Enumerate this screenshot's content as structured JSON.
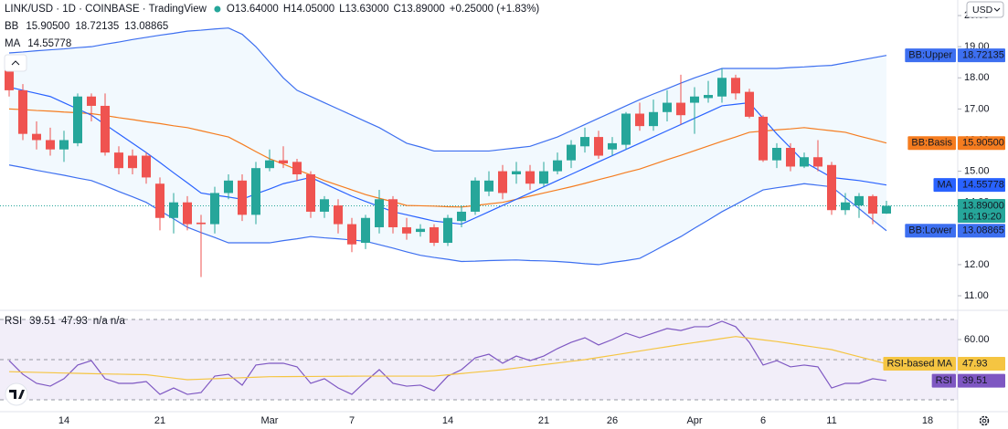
{
  "header": {
    "title": "LINK/USD · 1D · COINBASE · TradingView",
    "ohlc": [
      "O13.64000",
      "H14.05000",
      "L13.63000",
      "C13.89000",
      "+0.25000 (+1.83%)"
    ],
    "currency": "USD"
  },
  "chart_data": [
    {
      "type": "candlestick",
      "categories": [
        null,
        null,
        null,
        null,
        "14",
        null,
        null,
        null,
        null,
        null,
        null,
        "21",
        null,
        null,
        null,
        null,
        null,
        null,
        null,
        "Mar",
        null,
        null,
        null,
        null,
        null,
        "7",
        null,
        null,
        null,
        null,
        null,
        null,
        "14",
        null,
        null,
        null,
        null,
        null,
        null,
        "21",
        null,
        null,
        null,
        null,
        "26",
        null,
        null,
        null,
        null,
        null,
        "Apr",
        null,
        null,
        null,
        null,
        "6",
        null,
        null,
        null,
        null,
        "11",
        null,
        null,
        null,
        null,
        null,
        null,
        "18",
        null,
        null
      ],
      "open": [
        18.6,
        17.6,
        16.2,
        16.0,
        15.7,
        15.9,
        17.4,
        17.1,
        15.6,
        15.5,
        15.5,
        14.6,
        13.5,
        14.0,
        13.35,
        13.3,
        14.3,
        14.7,
        13.6,
        15.1,
        15.35,
        15.3,
        14.9,
        13.7,
        13.9,
        13.3,
        12.7,
        13.2,
        14.1,
        13.2,
        13.05,
        13.2,
        12.7,
        13.4,
        13.7,
        14.35,
        15.0,
        14.9,
        15.0,
        14.6,
        15.0,
        15.35,
        15.8,
        16.1,
        15.7,
        15.85,
        16.85,
        16.45,
        16.9,
        17.2,
        17.2,
        17.35,
        17.4,
        18.0,
        17.55,
        16.75,
        15.35,
        15.75,
        15.15,
        15.45,
        15.2,
        13.75,
        13.9,
        14.2,
        13.64,
        null,
        null,
        null,
        null,
        null
      ],
      "high": [
        18.7,
        17.8,
        16.6,
        16.4,
        16.3,
        17.5,
        17.5,
        17.5,
        15.8,
        15.7,
        15.6,
        14.8,
        14.3,
        14.2,
        13.6,
        14.5,
        14.9,
        14.9,
        15.3,
        15.7,
        15.8,
        15.4,
        15.0,
        14.2,
        14.1,
        13.5,
        13.6,
        14.4,
        14.2,
        13.5,
        13.3,
        13.3,
        13.6,
        13.9,
        14.8,
        15.0,
        15.2,
        15.3,
        15.2,
        15.3,
        15.6,
        16.0,
        16.4,
        16.3,
        16.1,
        16.9,
        17.2,
        17.3,
        17.6,
        18.1,
        17.7,
        17.9,
        18.3,
        18.1,
        17.65,
        16.8,
        15.9,
        15.9,
        15.6,
        16.0,
        15.3,
        14.3,
        14.3,
        14.25,
        14.05,
        null,
        null,
        null,
        null,
        null
      ],
      "low": [
        17.4,
        16.0,
        15.7,
        15.5,
        15.3,
        15.8,
        16.6,
        15.5,
        14.9,
        14.9,
        14.6,
        13.1,
        13.0,
        13.1,
        11.6,
        13.0,
        14.1,
        13.4,
        13.3,
        15.0,
        15.1,
        14.7,
        13.5,
        13.5,
        13.0,
        12.4,
        12.5,
        13.0,
        13.0,
        12.8,
        12.9,
        12.6,
        12.6,
        13.2,
        13.6,
        14.2,
        14.1,
        14.6,
        14.4,
        14.5,
        14.9,
        15.1,
        15.6,
        15.4,
        15.5,
        15.7,
        16.3,
        16.3,
        16.6,
        16.5,
        16.2,
        17.2,
        17.2,
        17.3,
        16.7,
        15.3,
        15.1,
        15.0,
        15.1,
        15.0,
        13.6,
        13.6,
        13.5,
        13.3,
        13.63,
        null,
        null,
        null,
        null,
        null
      ],
      "close": [
        17.6,
        16.2,
        16.0,
        15.7,
        16.0,
        17.4,
        17.1,
        15.6,
        15.1,
        15.1,
        14.8,
        13.5,
        14.0,
        13.3,
        13.3,
        14.3,
        14.7,
        13.6,
        15.1,
        15.35,
        15.25,
        14.9,
        13.7,
        14.1,
        13.3,
        12.65,
        13.5,
        14.1,
        13.2,
        13.0,
        13.15,
        12.7,
        13.5,
        13.7,
        14.7,
        14.7,
        14.3,
        15.0,
        14.6,
        15.0,
        15.35,
        15.85,
        16.1,
        15.5,
        15.9,
        16.85,
        16.45,
        16.9,
        17.2,
        16.8,
        17.4,
        17.45,
        18.0,
        17.5,
        16.75,
        15.35,
        15.75,
        15.15,
        15.45,
        15.15,
        13.75,
        14.0,
        14.2,
        13.64,
        13.89,
        null,
        null,
        null,
        null,
        null
      ],
      "last_label": "13.89000",
      "countdown": "16:19:20",
      "up_color": "#26a69a",
      "down_color": "#ef5350",
      "legend": [
        "BB",
        "MA"
      ],
      "series": [
        {
          "name": "BB:Basis",
          "color": "#f57c1f",
          "last_label": "15.90500",
          "values": [
            17.0,
            16.98,
            16.95,
            16.93,
            16.9,
            16.88,
            16.85,
            16.79,
            16.72,
            16.66,
            16.59,
            16.53,
            16.46,
            16.4,
            16.3,
            16.2,
            16.1,
            15.87,
            15.63,
            15.4,
            15.23,
            15.05,
            14.88,
            14.7,
            14.55,
            14.4,
            14.25,
            14.13,
            14.02,
            13.9,
            13.89,
            13.88,
            13.86,
            13.85,
            13.9,
            13.95,
            14.0,
            14.1,
            14.2,
            14.3,
            14.4,
            14.5,
            14.61,
            14.73,
            14.84,
            14.96,
            15.07,
            15.22,
            15.37,
            15.51,
            15.66,
            15.81,
            15.96,
            16.1,
            16.25,
            16.29,
            16.33,
            16.36,
            16.4,
            16.35,
            16.3,
            16.25,
            16.13,
            16.02,
            15.905,
            null,
            null,
            null,
            null,
            null
          ]
        },
        {
          "name": "BB:Upper",
          "color": "#3d6ff0",
          "last_label": "18.72135",
          "band_edge": true,
          "values": [
            18.8,
            18.83,
            18.87,
            18.9,
            18.93,
            18.97,
            19.0,
            19.08,
            19.15,
            19.23,
            19.3,
            19.37,
            19.43,
            19.5,
            19.53,
            19.57,
            19.6,
            19.4,
            19.0,
            18.5,
            18.0,
            17.6,
            17.4,
            17.2,
            17.0,
            16.8,
            16.6,
            16.4,
            16.15,
            15.9,
            15.78,
            15.65,
            15.65,
            15.65,
            15.65,
            15.65,
            15.7,
            15.75,
            15.8,
            15.95,
            16.1,
            16.3,
            16.5,
            16.7,
            16.9,
            17.1,
            17.3,
            17.48,
            17.65,
            17.83,
            18.0,
            18.15,
            18.3,
            18.3,
            18.3,
            18.3,
            18.3,
            18.33,
            18.35,
            18.38,
            18.4,
            18.48,
            18.56,
            18.64,
            18.72135,
            null,
            null,
            null,
            null,
            null
          ]
        },
        {
          "name": "BB:Lower",
          "color": "#3d6ff0",
          "last_label": "13.08865",
          "band_edge": true,
          "values": [
            15.2,
            15.12,
            15.03,
            14.95,
            14.87,
            14.78,
            14.7,
            14.53,
            14.35,
            14.18,
            14.0,
            13.73,
            13.47,
            13.2,
            13.03,
            12.87,
            12.7,
            12.7,
            12.7,
            12.7,
            12.77,
            12.83,
            12.9,
            12.86,
            12.83,
            12.79,
            12.75,
            12.64,
            12.53,
            12.41,
            12.3,
            12.23,
            12.17,
            12.1,
            12.11,
            12.13,
            12.14,
            12.15,
            12.13,
            12.12,
            12.1,
            12.07,
            12.03,
            12.0,
            12.07,
            12.13,
            12.2,
            12.43,
            12.67,
            12.9,
            13.17,
            13.43,
            13.7,
            13.93,
            14.17,
            14.4,
            14.47,
            14.53,
            14.6,
            14.55,
            14.5,
            14.15,
            13.8,
            13.44,
            13.08865,
            null,
            null,
            null,
            null,
            null
          ]
        },
        {
          "name": "MA",
          "color": "#2962ff",
          "last_label": "14.55778",
          "values": [
            17.7,
            17.6,
            17.5,
            17.4,
            17.2,
            17.0,
            16.8,
            16.5,
            16.2,
            15.9,
            15.6,
            15.28,
            14.95,
            14.63,
            14.3,
            14.23,
            14.17,
            14.1,
            14.27,
            14.43,
            14.6,
            14.7,
            14.8,
            14.6,
            14.4,
            14.2,
            14.03,
            13.87,
            13.7,
            13.6,
            13.5,
            13.4,
            13.35,
            13.3,
            13.5,
            13.7,
            13.9,
            14.1,
            14.3,
            14.5,
            14.7,
            14.9,
            15.1,
            15.3,
            15.5,
            15.7,
            15.9,
            16.1,
            16.3,
            16.5,
            16.7,
            16.9,
            17.1,
            17.15,
            17.2,
            16.7,
            16.2,
            15.75,
            15.3,
            15.05,
            14.8,
            14.75,
            14.7,
            14.63,
            14.55778,
            null,
            null,
            null,
            null,
            null
          ]
        }
      ],
      "band_color": "#2196f3",
      "ylim": [
        10.59,
        20.5
      ],
      "yticks": [
        {
          "value": 11,
          "label": "11.00"
        },
        {
          "value": 12,
          "label": "12.00"
        },
        {
          "value": 13,
          "label": "13.00"
        },
        {
          "value": 14,
          "label": "14.00"
        },
        {
          "value": 15,
          "label": "15.00"
        },
        {
          "value": 16,
          "label": "16.00"
        },
        {
          "value": 17,
          "label": "17.00"
        },
        {
          "value": 18,
          "label": "18.00"
        },
        {
          "value": 19,
          "label": "19.00"
        },
        {
          "value": 20,
          "label": "20.00"
        }
      ],
      "grid": false
    },
    {
      "type": "line",
      "legend": [
        "RSI"
      ],
      "legend_extra": "n/a n/a",
      "series": [
        {
          "name": "RSI",
          "color": "#7e57c2",
          "last_label": "39.51",
          "values": [
            49.5,
            42.7,
            38.2,
            36.8,
            40.5,
            47.3,
            49.5,
            40.5,
            38.2,
            38.2,
            39.1,
            32.7,
            35.9,
            32.7,
            33.6,
            41.8,
            42.7,
            37.3,
            47.3,
            48.2,
            48.2,
            46.4,
            38.2,
            40.5,
            35.9,
            32.7,
            39.1,
            45.0,
            38.2,
            36.8,
            37.3,
            34.5,
            41.8,
            45.0,
            50.9,
            52.7,
            48.2,
            51.8,
            49.5,
            51.8,
            55.5,
            58.6,
            60.9,
            57.3,
            60.0,
            63.2,
            60.9,
            63.2,
            65.5,
            64.5,
            66.4,
            66.4,
            69.1,
            66.4,
            58.6,
            47.3,
            49.5,
            46.4,
            47.3,
            46.4,
            35.9,
            38.2,
            38.2,
            40.5,
            39.51,
            null,
            null,
            null,
            null,
            null
          ]
        },
        {
          "name": "RSI-based MA",
          "color": "#f5c542",
          "last_label": "47.93",
          "tag_text": "#131722",
          "values": [
            44,
            43.83,
            43.67,
            43.5,
            43.33,
            43.17,
            43,
            42.88,
            42.75,
            42.63,
            42.5,
            41.67,
            40.83,
            40,
            40.25,
            40.5,
            40.75,
            41,
            41.25,
            41.5,
            41.54,
            41.59,
            41.63,
            41.67,
            41.71,
            41.76,
            41.8,
            41.8,
            41.8,
            41.8,
            41.8,
            41.8,
            42.44,
            43.08,
            43.72,
            44.36,
            45,
            45.83,
            46.67,
            47.5,
            48.33,
            49.17,
            50,
            51.07,
            52.14,
            53.21,
            54.29,
            55.36,
            56.43,
            57.5,
            58.5,
            59.5,
            60.5,
            61.5,
            60.67,
            59.83,
            59,
            58,
            57,
            56,
            55,
            53.23,
            51.46,
            49.7,
            47.93,
            null,
            null,
            null,
            null,
            null
          ]
        }
      ],
      "bands": [
        70,
        50,
        30
      ],
      "band_color": "#7e57c2",
      "ylim": [
        24.55,
        74.09
      ],
      "yticks": [
        {
          "value": 60,
          "label": "60.00"
        }
      ],
      "grid": false
    }
  ]
}
